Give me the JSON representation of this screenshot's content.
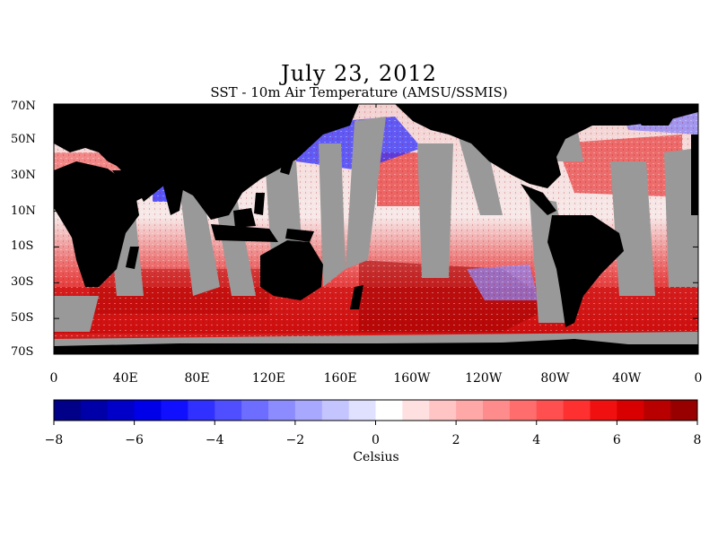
{
  "title": "July 23, 2012",
  "subtitle": "SST - 10m Air Temperature (AMSU/SSMIS)",
  "latitude_labels": [
    "70N",
    "50N",
    "30N",
    "10N",
    "10S",
    "30S",
    "50S",
    "70S"
  ],
  "longitude_labels": [
    "0",
    "40E",
    "80E",
    "120E",
    "160E",
    "160W",
    "120W",
    "80W",
    "40W",
    "0"
  ],
  "colorbar": {
    "tick_labels": [
      "-8",
      "-6",
      "-4",
      "-2",
      "0",
      "2",
      "4",
      "6",
      "8"
    ],
    "units": "Celsius",
    "min": -8,
    "max": 8,
    "colors": [
      "#000088",
      "#0000a8",
      "#0000c8",
      "#0000e8",
      "#1010ff",
      "#3030ff",
      "#4f4fff",
      "#6d6dff",
      "#8c8cff",
      "#a8a8ff",
      "#c4c4ff",
      "#e0e0ff",
      "#ffffff",
      "#ffe0e0",
      "#ffc4c4",
      "#ffa8a8",
      "#ff8c8c",
      "#ff6d6d",
      "#ff4f4f",
      "#ff3030",
      "#f01010",
      "#d80000",
      "#b80000",
      "#980000"
    ]
  },
  "colors": {
    "land": "#000000",
    "no_data": "#999999",
    "background": "#ffffff"
  }
}
